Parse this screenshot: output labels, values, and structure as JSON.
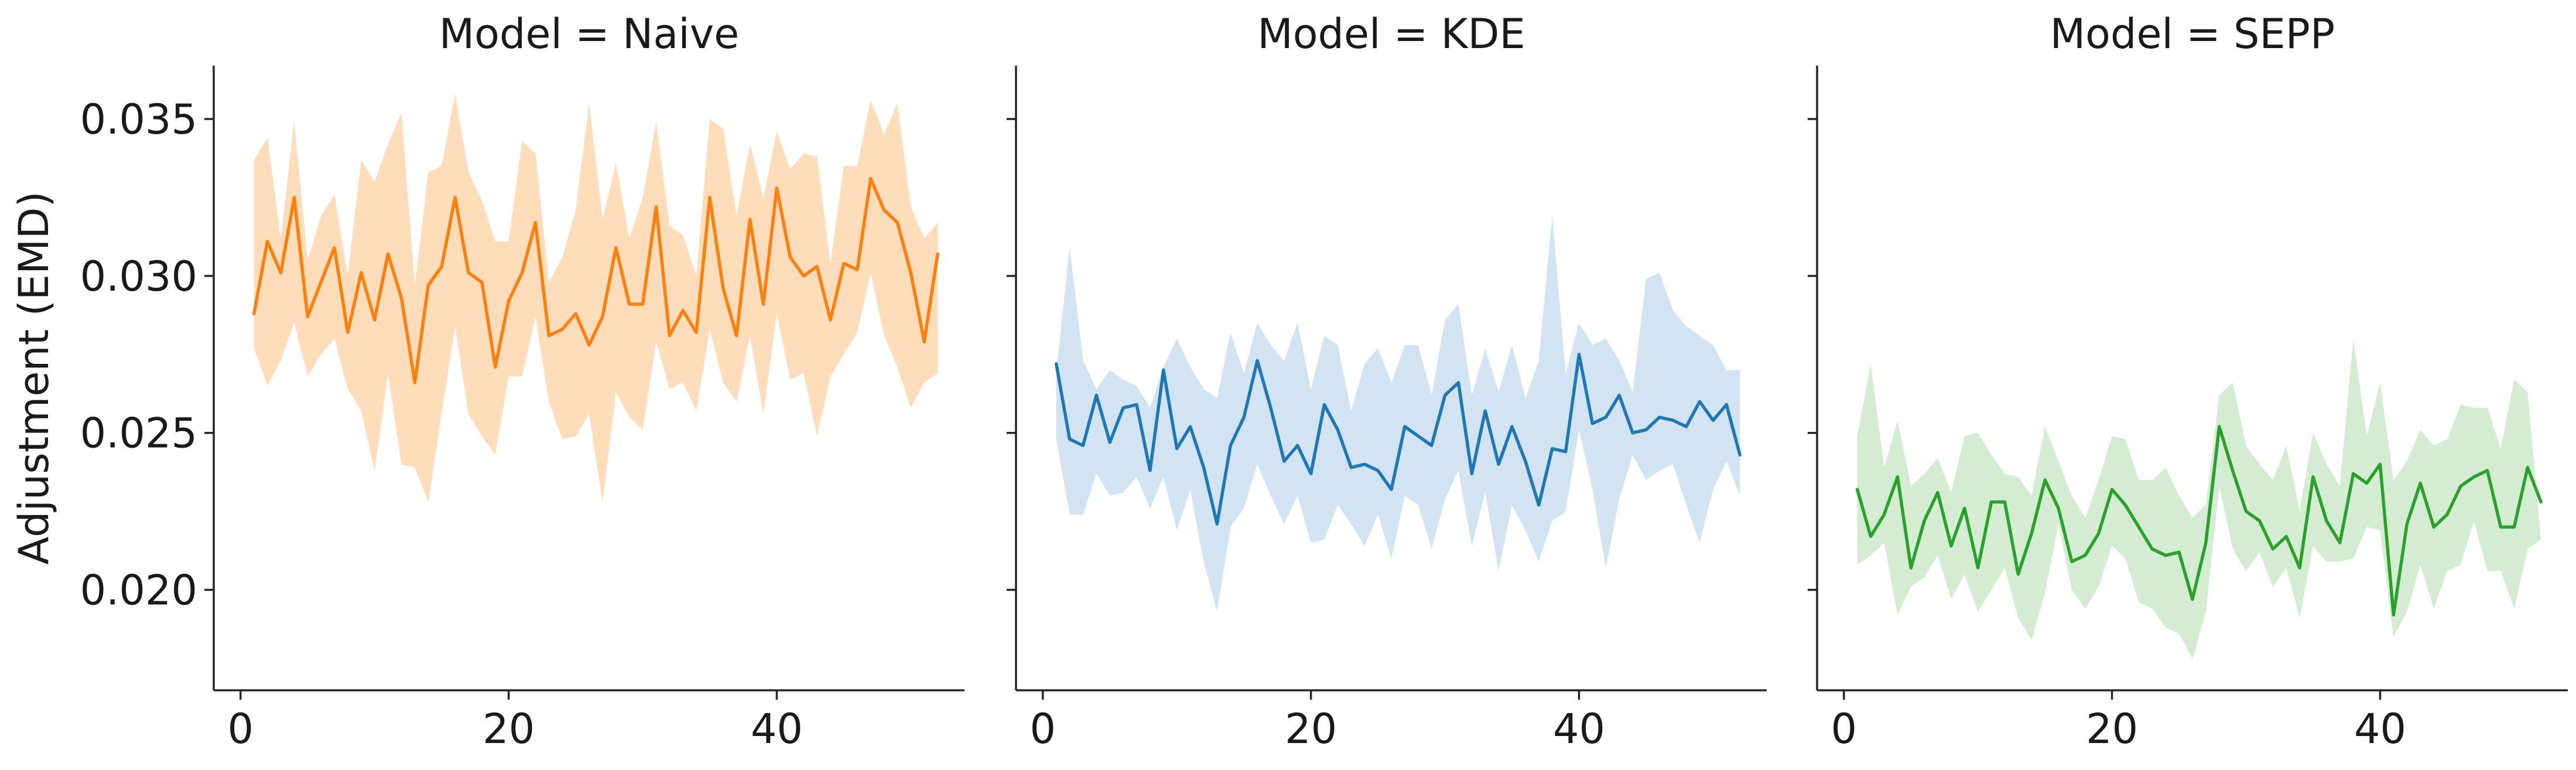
{
  "chart_data": {
    "type": "line",
    "ylabel": "Adjustment (EMD)",
    "ylim": [
      0.0168,
      0.0367
    ],
    "xlim": [
      -2,
      54
    ],
    "xticks": [
      0,
      20,
      40
    ],
    "yticks": [
      0.02,
      0.025,
      0.03,
      0.035
    ],
    "ytick_labels": [
      "0.020",
      "0.025",
      "0.030",
      "0.035"
    ],
    "grid": false,
    "legend": "none",
    "panels": [
      {
        "title": "Model = Naive",
        "color": "#ff7f0e",
        "band_color": "#ffbb78",
        "x": [
          1,
          2,
          3,
          4,
          5,
          6,
          7,
          8,
          9,
          10,
          11,
          12,
          13,
          14,
          15,
          16,
          17,
          18,
          19,
          20,
          21,
          22,
          23,
          24,
          25,
          26,
          27,
          28,
          29,
          30,
          31,
          32,
          33,
          34,
          35,
          36,
          37,
          38,
          39,
          40,
          41,
          42,
          43,
          44,
          45,
          46,
          47,
          48,
          49,
          50,
          51,
          52
        ],
        "mean": [
          0.0288,
          0.0311,
          0.0301,
          0.0325,
          0.0287,
          0.0298,
          0.0309,
          0.0282,
          0.0301,
          0.0286,
          0.0307,
          0.0293,
          0.0266,
          0.0297,
          0.0303,
          0.0325,
          0.0301,
          0.0298,
          0.0271,
          0.0292,
          0.0301,
          0.0317,
          0.0281,
          0.0283,
          0.0288,
          0.0278,
          0.0287,
          0.0309,
          0.0291,
          0.0291,
          0.0322,
          0.0281,
          0.0289,
          0.0282,
          0.0325,
          0.0296,
          0.0281,
          0.0318,
          0.0291,
          0.0328,
          0.0306,
          0.03,
          0.0303,
          0.0286,
          0.0304,
          0.0302,
          0.0331,
          0.0321,
          0.0317,
          0.0301,
          0.0279,
          0.0307
        ],
        "lower": [
          0.0277,
          0.0265,
          0.0273,
          0.0285,
          0.0268,
          0.0275,
          0.028,
          0.0264,
          0.0257,
          0.0238,
          0.0269,
          0.024,
          0.0239,
          0.0228,
          0.0256,
          0.0284,
          0.0256,
          0.0249,
          0.0243,
          0.0268,
          0.0268,
          0.0287,
          0.026,
          0.0248,
          0.0249,
          0.0256,
          0.0228,
          0.0263,
          0.0255,
          0.0251,
          0.0279,
          0.0264,
          0.0266,
          0.0257,
          0.0283,
          0.0266,
          0.026,
          0.0281,
          0.0256,
          0.0288,
          0.0267,
          0.0269,
          0.0249,
          0.0268,
          0.0275,
          0.0282,
          0.0301,
          0.0281,
          0.0271,
          0.0258,
          0.0266,
          0.0269
        ],
        "upper": [
          0.0337,
          0.0344,
          0.0312,
          0.0349,
          0.0305,
          0.0319,
          0.0326,
          0.03,
          0.0337,
          0.033,
          0.0342,
          0.0352,
          0.0297,
          0.0333,
          0.0335,
          0.0358,
          0.0333,
          0.0324,
          0.0311,
          0.0311,
          0.0343,
          0.0339,
          0.0298,
          0.0306,
          0.0321,
          0.0355,
          0.0318,
          0.0336,
          0.0312,
          0.0325,
          0.0349,
          0.0316,
          0.0313,
          0.03,
          0.035,
          0.0347,
          0.0319,
          0.0342,
          0.0325,
          0.0346,
          0.0334,
          0.0339,
          0.0338,
          0.0304,
          0.0335,
          0.0335,
          0.0356,
          0.0345,
          0.0355,
          0.0322,
          0.0312,
          0.0317
        ]
      },
      {
        "title": "Model = KDE",
        "color": "#1f77b4",
        "band_color": "#a6c8e3",
        "x": [
          1,
          2,
          3,
          4,
          5,
          6,
          7,
          8,
          9,
          10,
          11,
          12,
          13,
          14,
          15,
          16,
          17,
          18,
          19,
          20,
          21,
          22,
          23,
          24,
          25,
          26,
          27,
          28,
          29,
          30,
          31,
          32,
          33,
          34,
          35,
          36,
          37,
          38,
          39,
          40,
          41,
          42,
          43,
          44,
          45,
          46,
          47,
          48,
          49,
          50,
          51,
          52
        ],
        "mean": [
          0.0272,
          0.0248,
          0.0246,
          0.0262,
          0.0247,
          0.0258,
          0.0259,
          0.0238,
          0.027,
          0.0245,
          0.0252,
          0.0239,
          0.0221,
          0.0246,
          0.0255,
          0.0273,
          0.0258,
          0.0241,
          0.0246,
          0.0237,
          0.0259,
          0.0251,
          0.0239,
          0.024,
          0.0238,
          0.0232,
          0.0252,
          0.0249,
          0.0246,
          0.0262,
          0.0266,
          0.0237,
          0.0257,
          0.024,
          0.0252,
          0.0241,
          0.0227,
          0.0245,
          0.0244,
          0.0275,
          0.0253,
          0.0255,
          0.0262,
          0.025,
          0.0251,
          0.0255,
          0.0254,
          0.0252,
          0.026,
          0.0254,
          0.0259,
          0.0243
        ],
        "lower": [
          0.0248,
          0.0224,
          0.0224,
          0.0237,
          0.023,
          0.0231,
          0.0236,
          0.0226,
          0.0236,
          0.0219,
          0.0232,
          0.0209,
          0.0193,
          0.022,
          0.0226,
          0.024,
          0.023,
          0.0221,
          0.023,
          0.0215,
          0.0216,
          0.0227,
          0.0221,
          0.0214,
          0.0224,
          0.021,
          0.023,
          0.0227,
          0.0213,
          0.0229,
          0.0238,
          0.0214,
          0.0231,
          0.0206,
          0.0227,
          0.0219,
          0.0209,
          0.0222,
          0.0225,
          0.0251,
          0.0232,
          0.0207,
          0.0229,
          0.0243,
          0.0235,
          0.0238,
          0.024,
          0.0227,
          0.0215,
          0.0232,
          0.0241,
          0.023
        ],
        "upper": [
          0.0269,
          0.0309,
          0.0273,
          0.0264,
          0.027,
          0.0267,
          0.0265,
          0.0258,
          0.0271,
          0.028,
          0.0271,
          0.0264,
          0.0261,
          0.0282,
          0.0269,
          0.0285,
          0.0278,
          0.0273,
          0.0285,
          0.0264,
          0.0281,
          0.0278,
          0.0257,
          0.0272,
          0.0277,
          0.0266,
          0.0278,
          0.0278,
          0.0262,
          0.0286,
          0.0291,
          0.0262,
          0.0277,
          0.0263,
          0.0278,
          0.0261,
          0.0273,
          0.0319,
          0.0269,
          0.0285,
          0.0278,
          0.028,
          0.0273,
          0.0263,
          0.0299,
          0.0301,
          0.0289,
          0.0284,
          0.0281,
          0.0278,
          0.027,
          0.027
        ]
      },
      {
        "title": "Model = SEPP",
        "color": "#2ca02c",
        "band_color": "#a9dca6",
        "x": [
          1,
          2,
          3,
          4,
          5,
          6,
          7,
          8,
          9,
          10,
          11,
          12,
          13,
          14,
          15,
          16,
          17,
          18,
          19,
          20,
          21,
          22,
          23,
          24,
          25,
          26,
          27,
          28,
          29,
          30,
          31,
          32,
          33,
          34,
          35,
          36,
          37,
          38,
          39,
          40,
          41,
          42,
          43,
          44,
          45,
          46,
          47,
          48,
          49,
          50,
          51,
          52
        ],
        "mean": [
          0.0232,
          0.0217,
          0.0224,
          0.0236,
          0.0207,
          0.0222,
          0.0231,
          0.0214,
          0.0226,
          0.0207,
          0.0228,
          0.0228,
          0.0205,
          0.0218,
          0.0235,
          0.0226,
          0.0209,
          0.0211,
          0.0218,
          0.0232,
          0.0227,
          0.022,
          0.0213,
          0.0211,
          0.0212,
          0.0197,
          0.0215,
          0.0252,
          0.0238,
          0.0225,
          0.0222,
          0.0213,
          0.0217,
          0.0207,
          0.0236,
          0.0222,
          0.0215,
          0.0237,
          0.0234,
          0.024,
          0.0192,
          0.0221,
          0.0234,
          0.022,
          0.0224,
          0.0233,
          0.0236,
          0.0238,
          0.022,
          0.022,
          0.0239,
          0.0228
        ],
        "lower": [
          0.0208,
          0.0211,
          0.0215,
          0.0192,
          0.0201,
          0.0204,
          0.0211,
          0.0197,
          0.0205,
          0.0193,
          0.02,
          0.0207,
          0.0191,
          0.0184,
          0.0199,
          0.0221,
          0.02,
          0.0194,
          0.0201,
          0.0214,
          0.021,
          0.0196,
          0.0194,
          0.0188,
          0.0186,
          0.0178,
          0.0193,
          0.0233,
          0.0213,
          0.0206,
          0.0212,
          0.0201,
          0.0207,
          0.0191,
          0.0214,
          0.0209,
          0.0209,
          0.021,
          0.022,
          0.0219,
          0.0185,
          0.0193,
          0.0208,
          0.0194,
          0.0206,
          0.0208,
          0.0222,
          0.0206,
          0.0206,
          0.0194,
          0.0213,
          0.0216
        ],
        "upper": [
          0.0249,
          0.0272,
          0.0239,
          0.0254,
          0.0233,
          0.0237,
          0.0242,
          0.0231,
          0.0249,
          0.025,
          0.0243,
          0.0237,
          0.0236,
          0.023,
          0.0252,
          0.0241,
          0.023,
          0.0223,
          0.0235,
          0.0249,
          0.0248,
          0.0235,
          0.0235,
          0.0239,
          0.023,
          0.0223,
          0.0227,
          0.0262,
          0.0266,
          0.0246,
          0.024,
          0.0235,
          0.0246,
          0.0225,
          0.025,
          0.024,
          0.0233,
          0.028,
          0.0249,
          0.0266,
          0.0235,
          0.0241,
          0.0251,
          0.0246,
          0.0248,
          0.0259,
          0.0258,
          0.0258,
          0.0245,
          0.0267,
          0.0263,
          0.0216
        ]
      }
    ]
  }
}
